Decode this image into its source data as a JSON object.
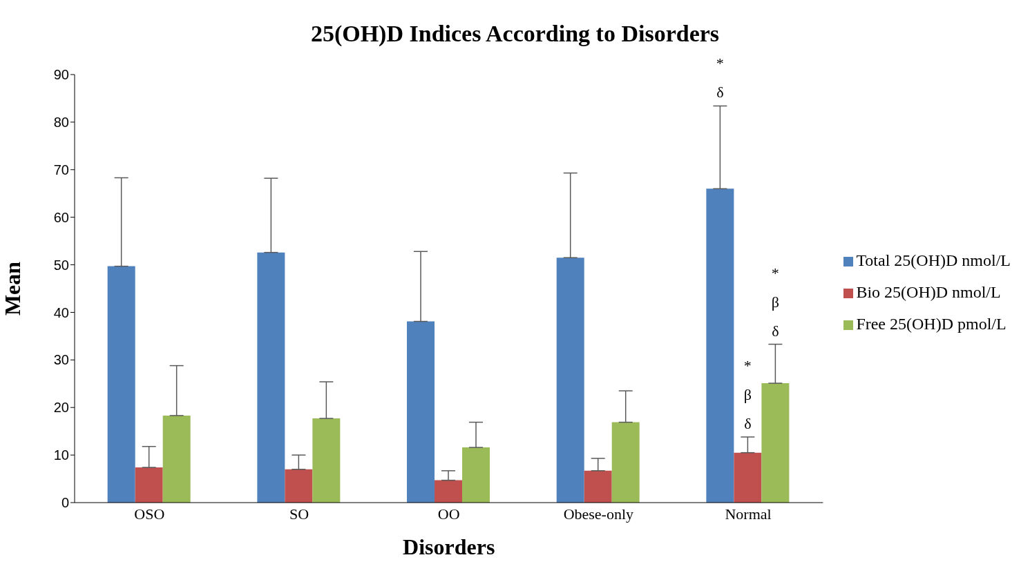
{
  "chart_data": {
    "type": "bar",
    "title": "25(OH)D Indices According to Disorders",
    "xlabel": "Disorders",
    "ylabel": "Mean",
    "categories": [
      "OSO",
      "SO",
      "OO",
      "Obese-only",
      "Normal"
    ],
    "series": [
      {
        "name": "Total 25(OH)D nmol/L",
        "color": "#4f81bd",
        "values": [
          49.7,
          52.6,
          38.1,
          51.5,
          66.0
        ],
        "errors": [
          [
            49.7,
            68.3
          ],
          [
            52.6,
            68.2
          ],
          [
            38.1,
            52.8
          ],
          [
            51.5,
            69.3
          ],
          [
            66.0,
            83.4
          ]
        ]
      },
      {
        "name": "Bio 25(OH)D nmol/L",
        "color": "#c0504d",
        "values": [
          7.4,
          7.0,
          4.7,
          6.7,
          10.5
        ],
        "errors": [
          [
            7.4,
            11.8
          ],
          [
            7.0,
            10.0
          ],
          [
            4.7,
            6.7
          ],
          [
            6.7,
            9.3
          ],
          [
            10.5,
            13.8
          ]
        ]
      },
      {
        "name": "Free 25(OH)D pmol/L",
        "color": "#9bbb59",
        "values": [
          18.3,
          17.7,
          11.6,
          16.9,
          25.1
        ],
        "errors": [
          [
            18.3,
            28.8
          ],
          [
            17.7,
            25.4
          ],
          [
            11.6,
            16.9
          ],
          [
            16.9,
            23.5
          ],
          [
            25.1,
            33.3
          ]
        ]
      }
    ],
    "ylim": [
      0,
      90
    ],
    "yticks": [
      0,
      10,
      20,
      30,
      40,
      50,
      60,
      70,
      80,
      90
    ],
    "grid": false,
    "legend": "right",
    "annotations": [
      "*\nδ",
      "*\nβ\nδ",
      "*\nβ\nδ"
    ]
  }
}
